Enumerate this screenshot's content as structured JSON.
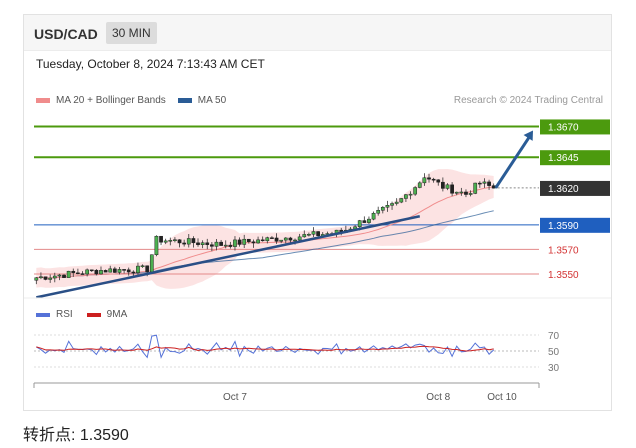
{
  "header": {
    "symbol": "USD/CAD",
    "timeframe": "30 MIN"
  },
  "timestamp": "Tuesday, October 8, 2024 7:13:43 AM CET",
  "legend": {
    "ma20": {
      "label": "MA 20 + Bollinger Bands",
      "color": "#f08c8c"
    },
    "ma50": {
      "label": "MA 50",
      "color": "#2a5c96"
    }
  },
  "credit": "Research © 2024 Trading Central",
  "levels": [
    {
      "value": 1.367,
      "label": "1.3670",
      "kind": "resistance",
      "color": "#4c9a0e"
    },
    {
      "value": 1.3645,
      "label": "1.3645",
      "kind": "resistance",
      "color": "#4c9a0e"
    },
    {
      "value": 1.362,
      "label": "1.3620",
      "kind": "last-price",
      "color": "#333333"
    },
    {
      "value": 1.359,
      "label": "1.3590",
      "kind": "pivot",
      "color": "#1f5fbf"
    },
    {
      "value": 1.357,
      "label": "1.3570",
      "kind": "support",
      "color": "#d33333"
    },
    {
      "value": 1.355,
      "label": "1.3550",
      "kind": "support",
      "color": "#d33333"
    }
  ],
  "rsi": {
    "legend_rsi": "RSI",
    "legend_ma": "9MA",
    "rsi_color": "#5572d8",
    "ma_color": "#cc1f1f",
    "ticks": [
      "70",
      "50",
      "30"
    ]
  },
  "x_axis": {
    "labels": [
      "Oct 7",
      "Oct 8",
      "Oct 10"
    ]
  },
  "pivot_text": "转折点: 1.3590",
  "chart_data": {
    "type": "candlestick",
    "price_range": [
      1.3537,
      1.3685
    ],
    "bar_count": 100,
    "price_start": 1.3547,
    "price_peak": 1.363,
    "price_last": 1.362,
    "trendline": {
      "from": [
        0,
        1.3531
      ],
      "to": [
        83,
        1.3597
      ]
    },
    "forecast_target": 1.367
  }
}
